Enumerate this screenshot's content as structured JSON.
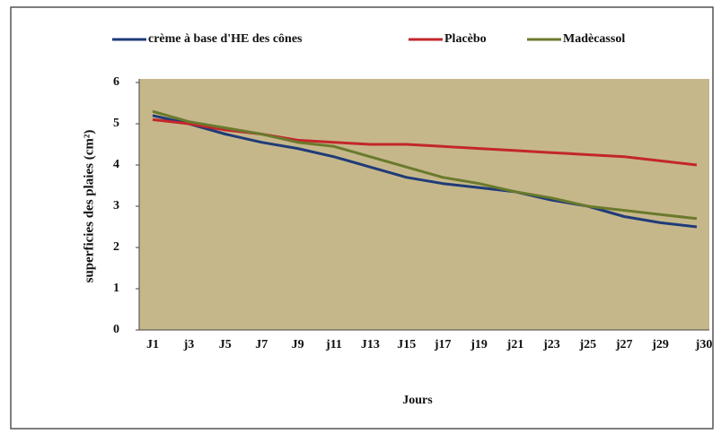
{
  "chart_data": {
    "type": "line",
    "x_label": "Jours",
    "y_label": "superficies des plaies (cm²)",
    "categories": [
      "J1",
      "j3",
      "J5",
      "J7",
      "J9",
      "j11",
      "J13",
      "J15",
      "j17",
      "j19",
      "j21",
      "j23",
      "j25",
      "j27",
      "j29",
      "j30"
    ],
    "series": [
      {
        "name": "crème à base d'HE des cônes",
        "color": "#1f3b78",
        "values": [
          5.2,
          5.0,
          4.75,
          4.55,
          4.4,
          4.2,
          3.95,
          3.7,
          3.55,
          3.45,
          3.35,
          3.15,
          3.0,
          2.75,
          2.6,
          2.5
        ]
      },
      {
        "name": "Placèbo",
        "color": "#c3262b",
        "values": [
          5.1,
          5.0,
          4.85,
          4.75,
          4.6,
          4.55,
          4.5,
          4.5,
          4.45,
          4.4,
          4.35,
          4.3,
          4.25,
          4.2,
          4.1,
          4.0
        ]
      },
      {
        "name": "Madècassol",
        "color": "#6a7a2c",
        "values": [
          5.3,
          5.05,
          4.9,
          4.75,
          4.55,
          4.45,
          4.2,
          3.95,
          3.7,
          3.55,
          3.35,
          3.2,
          3.0,
          2.9,
          2.8,
          2.7
        ]
      }
    ],
    "ylim": [
      0,
      6
    ],
    "yticks": [
      0,
      1,
      2,
      3,
      4,
      5,
      6
    ],
    "grid": false,
    "legend": "top"
  }
}
